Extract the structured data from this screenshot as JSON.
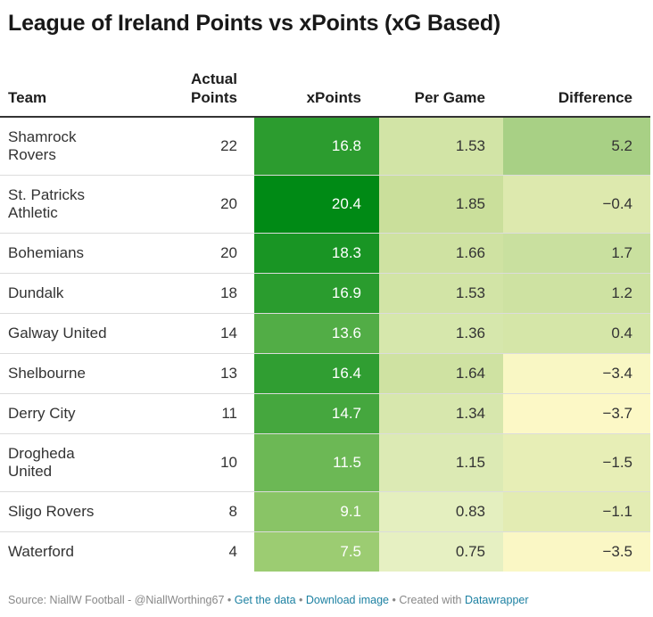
{
  "title": "League of Ireland Points vs xPoints (xG Based)",
  "columns": {
    "team": "Team",
    "actual_line1": "Actual",
    "actual_line2": "Points",
    "xpoints": "xPoints",
    "per_game": "Per Game",
    "difference": "Difference"
  },
  "chart_data": {
    "type": "table",
    "title": "League of Ireland Points vs xPoints (xG Based)",
    "columns": [
      "Team",
      "Actual Points",
      "xPoints",
      "Per Game",
      "Difference"
    ],
    "rows": [
      {
        "team_line1": "Shamrock",
        "team_line2": "Rovers",
        "actual": "22",
        "xpoints": "16.8",
        "per_game": "1.53",
        "difference": "5.2"
      },
      {
        "team_line1": "St. Patricks",
        "team_line2": "Athletic",
        "actual": "20",
        "xpoints": "20.4",
        "per_game": "1.85",
        "difference": "−0.4"
      },
      {
        "team_line1": "Bohemians",
        "team_line2": "",
        "actual": "20",
        "xpoints": "18.3",
        "per_game": "1.66",
        "difference": "1.7"
      },
      {
        "team_line1": "Dundalk",
        "team_line2": "",
        "actual": "18",
        "xpoints": "16.9",
        "per_game": "1.53",
        "difference": "1.2"
      },
      {
        "team_line1": "Galway United",
        "team_line2": "",
        "actual": "14",
        "xpoints": "13.6",
        "per_game": "1.36",
        "difference": "0.4"
      },
      {
        "team_line1": "Shelbourne",
        "team_line2": "",
        "actual": "13",
        "xpoints": "16.4",
        "per_game": "1.64",
        "difference": "−3.4"
      },
      {
        "team_line1": "Derry City",
        "team_line2": "",
        "actual": "11",
        "xpoints": "14.7",
        "per_game": "1.34",
        "difference": "−3.7"
      },
      {
        "team_line1": "Drogheda",
        "team_line2": "United",
        "actual": "10",
        "xpoints": "11.5",
        "per_game": "1.15",
        "difference": "−1.5"
      },
      {
        "team_line1": "Sligo Rovers",
        "team_line2": "",
        "actual": "8",
        "xpoints": "9.1",
        "per_game": "0.83",
        "difference": "−1.1"
      },
      {
        "team_line1": "Waterford",
        "team_line2": "",
        "actual": "4",
        "xpoints": "7.5",
        "per_game": "0.75",
        "difference": "−3.5"
      }
    ],
    "heat_colors": {
      "xpoints": {
        "min_value": 7.5,
        "max_value": 20.4,
        "low_color": "#9ccc72",
        "high_color": "#008a15"
      },
      "per_game": {
        "min_value": 0.75,
        "max_value": 1.85,
        "low_color": "#e6f0c2",
        "high_color": "#cadf9b"
      },
      "difference": {
        "min_value": -3.7,
        "max_value": 5.2,
        "low_color": "#fcf8c6",
        "high_color": "#a8d085"
      }
    }
  },
  "footer": {
    "source": "Source: NiallW Football - @NiallWorthing67",
    "sep1": " • ",
    "get_data": "Get the data",
    "sep2": " • ",
    "download": "Download image",
    "sep3": " • Created with ",
    "datawrapper": "Datawrapper"
  }
}
